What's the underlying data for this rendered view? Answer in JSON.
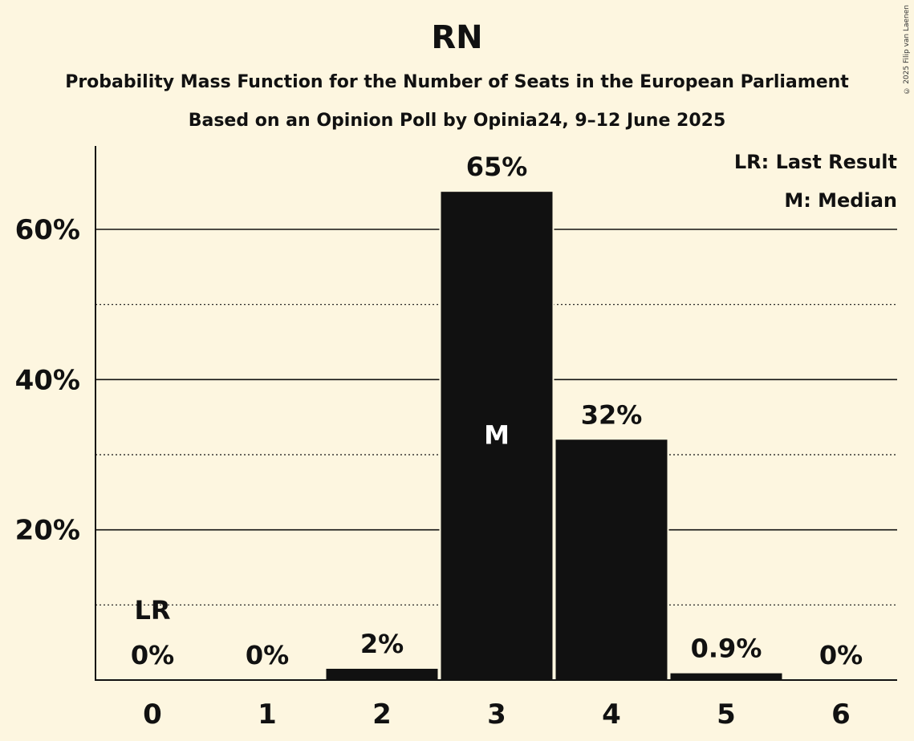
{
  "header": {
    "title": "RN",
    "subtitle1": "Probability Mass Function for the Number of Seats in the European Parliament",
    "subtitle2": "Based on an Opinion Poll by Opinia24, 9–12 June 2025",
    "copyright": "© 2025 Filip van Laenen"
  },
  "legend": {
    "last_result": "LR: Last Result",
    "median": "M: Median"
  },
  "colors": {
    "background": "#fdf6e0",
    "bar": "#111111",
    "text": "#111111",
    "median_label": "#ffffff"
  },
  "chart_data": {
    "type": "bar",
    "title": "RN",
    "xlabel": "",
    "ylabel": "",
    "categories": [
      "0",
      "1",
      "2",
      "3",
      "4",
      "5",
      "6"
    ],
    "values": [
      0,
      0,
      1.5,
      65,
      32,
      0.9,
      0
    ],
    "labels": [
      "0%",
      "0%",
      "2%",
      "65%",
      "32%",
      "0.9%",
      "0%"
    ],
    "ylim": [
      0,
      70
    ],
    "yticks_major": [
      20,
      40,
      60
    ],
    "ytick_labels": [
      "20%",
      "40%",
      "60%"
    ],
    "yticks_minor": [
      10,
      30,
      50
    ],
    "last_result_index": 0,
    "last_result_label": "LR",
    "median_index": 3,
    "median_label": "M",
    "legend_position": "top-right"
  }
}
